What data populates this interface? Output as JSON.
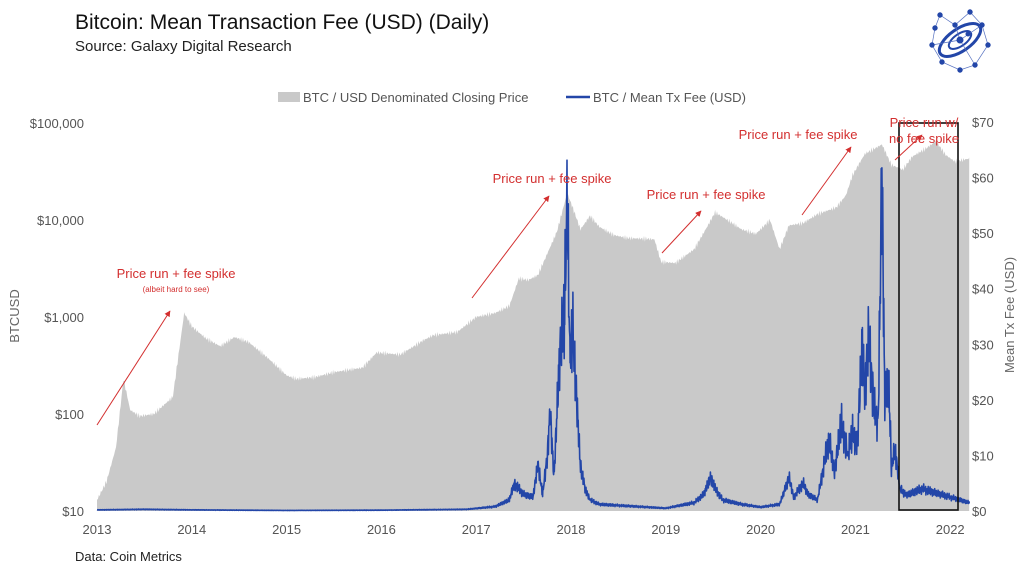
{
  "title": "Bitcoin: Mean Transaction Fee (USD) (Daily)",
  "subtitle": "Source: Galaxy Digital Research",
  "footer": "Data: Coin Metrics",
  "colors": {
    "price_area": "#c9c9c9",
    "fee_line": "#2346a8",
    "annotation": "#d32f2f",
    "box": "#111111"
  },
  "chart_data": {
    "type": "area+line",
    "legend": {
      "position": "top",
      "items": [
        "BTC / USD Denominated Closing Price",
        "BTC / Mean Tx Fee (USD)"
      ]
    },
    "x_ticks": [
      "2013",
      "2014",
      "2015",
      "2016",
      "2017",
      "2018",
      "2019",
      "2020",
      "2021",
      "2022"
    ],
    "xlim": [
      2013,
      2022.2
    ],
    "y_left": {
      "label": "BTCUSD",
      "scale": "log",
      "ylim": [
        10,
        100000
      ],
      "ticks": [
        "$10",
        "$100",
        "$1,000",
        "$10,000",
        "$100,000"
      ]
    },
    "y_right": {
      "label": "Mean Tx Fee (USD)",
      "ylim": [
        0,
        70
      ],
      "ticks": [
        "$0",
        "$10",
        "$20",
        "$30",
        "$40",
        "$50",
        "$60",
        "$70"
      ]
    },
    "series": [
      {
        "name": "BTC / USD Denominated Closing Price",
        "type": "area",
        "axis": "left",
        "x": [
          2013.0,
          2013.1,
          2013.2,
          2013.28,
          2013.35,
          2013.45,
          2013.6,
          2013.8,
          2013.92,
          2014.0,
          2014.15,
          2014.3,
          2014.45,
          2014.6,
          2014.8,
          2015.0,
          2015.1,
          2015.3,
          2015.5,
          2015.8,
          2015.95,
          2016.2,
          2016.45,
          2016.55,
          2016.8,
          2017.0,
          2017.2,
          2017.35,
          2017.45,
          2017.55,
          2017.65,
          2017.75,
          2017.85,
          2017.96,
          2018.05,
          2018.1,
          2018.2,
          2018.3,
          2018.45,
          2018.6,
          2018.8,
          2018.88,
          2018.95,
          2019.1,
          2019.3,
          2019.45,
          2019.52,
          2019.65,
          2019.8,
          2019.95,
          2020.1,
          2020.2,
          2020.3,
          2020.45,
          2020.6,
          2020.8,
          2020.9,
          2020.97,
          2021.1,
          2021.28,
          2021.38,
          2021.5,
          2021.6,
          2021.75,
          2021.85,
          2021.95,
          2022.05,
          2022.2
        ],
        "values": [
          13,
          20,
          45,
          230,
          110,
          95,
          100,
          150,
          1100,
          800,
          600,
          500,
          620,
          550,
          380,
          250,
          230,
          240,
          270,
          300,
          430,
          410,
          580,
          650,
          700,
          1000,
          1100,
          1300,
          2500,
          2400,
          2700,
          4500,
          7500,
          19000,
          11000,
          8000,
          11000,
          8500,
          7000,
          6500,
          6400,
          6300,
          3700,
          3600,
          5000,
          9000,
          12000,
          10000,
          8000,
          7200,
          10000,
          5000,
          8800,
          9300,
          11500,
          13500,
          18000,
          29000,
          48000,
          60000,
          37000,
          33000,
          45000,
          55000,
          65000,
          47000,
          40000,
          43000
        ]
      },
      {
        "name": "BTC / Mean Tx Fee (USD)",
        "type": "line",
        "axis": "right",
        "x": [
          2013.0,
          2013.5,
          2014.0,
          2015.0,
          2016.0,
          2016.9,
          2017.2,
          2017.35,
          2017.4,
          2017.5,
          2017.6,
          2017.65,
          2017.7,
          2017.75,
          2017.78,
          2017.82,
          2017.88,
          2017.93,
          2017.96,
          2017.99,
          2018.02,
          2018.06,
          2018.1,
          2018.15,
          2018.2,
          2018.3,
          2018.5,
          2018.8,
          2019.0,
          2019.3,
          2019.4,
          2019.47,
          2019.52,
          2019.6,
          2019.8,
          2020.0,
          2020.2,
          2020.3,
          2020.35,
          2020.45,
          2020.5,
          2020.6,
          2020.72,
          2020.78,
          2020.85,
          2020.92,
          2020.97,
          2021.02,
          2021.07,
          2021.1,
          2021.14,
          2021.2,
          2021.24,
          2021.28,
          2021.31,
          2021.35,
          2021.38,
          2021.42,
          2021.47,
          2021.52,
          2021.56,
          2021.7,
          2021.8,
          2021.9,
          2022.0,
          2022.1,
          2022.2
        ],
        "values": [
          0.2,
          0.3,
          0.2,
          0.1,
          0.15,
          0.3,
          0.8,
          2,
          5,
          3,
          2.5,
          8.5,
          3,
          10,
          18,
          6,
          28,
          35,
          56,
          27,
          32,
          20,
          8,
          4,
          2,
          1.2,
          1.0,
          0.7,
          0.5,
          1.5,
          3,
          6,
          4,
          2,
          1.2,
          0.7,
          1.2,
          6,
          2.5,
          5,
          3,
          2,
          13,
          7,
          16,
          10,
          14,
          12,
          30,
          22,
          31,
          18,
          16,
          61,
          20,
          24,
          8,
          11,
          4,
          3,
          3,
          4,
          3.5,
          3,
          2.5,
          2,
          1.5
        ]
      }
    ],
    "annotations": [
      {
        "text": "Price run + fee spike",
        "note": "(albeit hard to see)"
      },
      {
        "text": "Price run + fee spike"
      },
      {
        "text": "Price run + fee spike"
      },
      {
        "text": "Price run + fee spike"
      },
      {
        "text": "Price run w/",
        "text2": "no fee spike"
      }
    ]
  }
}
